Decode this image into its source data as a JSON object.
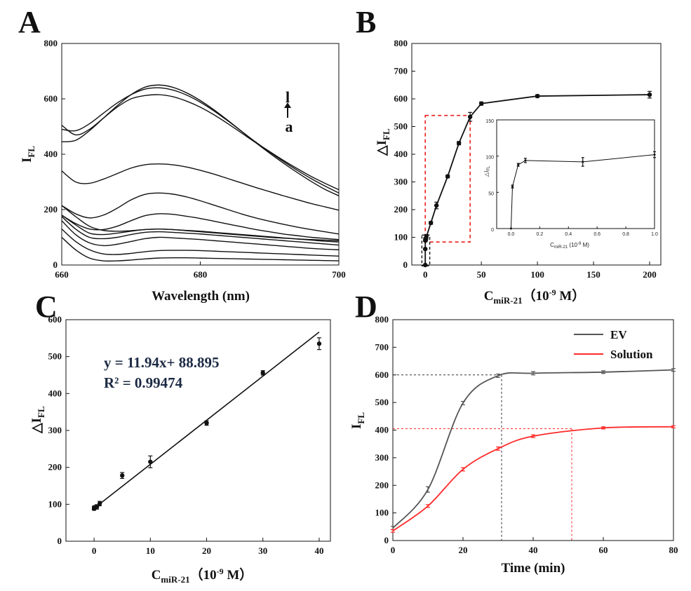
{
  "chart_data": [
    {
      "panel": "A",
      "type": "line",
      "xlabel": "Wavelength (nm)",
      "ylabel": "I",
      "ylabel_sub": "FL",
      "xlim": [
        660,
        700
      ],
      "ylim": [
        0,
        800
      ],
      "xticks": [
        "660",
        "680",
        "700"
      ],
      "yticks": [
        "0",
        "200",
        "400",
        "600",
        "800"
      ],
      "annotation_top": "l",
      "annotation_bottom": "a",
      "x": [
        660,
        662,
        664,
        666,
        668,
        670,
        672,
        674,
        676,
        678,
        680,
        682,
        684,
        686,
        688,
        690,
        692,
        694,
        696,
        698,
        700
      ],
      "series": [
        {
          "values": [
            100,
            55,
            25,
            15,
            15,
            18,
            22,
            25,
            26,
            26,
            25,
            24,
            23,
            22,
            21,
            20,
            19,
            18,
            17,
            16,
            15
          ]
        },
        {
          "values": [
            130,
            85,
            55,
            40,
            38,
            42,
            48,
            52,
            53,
            53,
            52,
            50,
            48,
            46,
            44,
            42,
            40,
            38,
            36,
            34,
            32
          ]
        },
        {
          "values": [
            160,
            110,
            80,
            70,
            75,
            85,
            95,
            100,
            98,
            95,
            92,
            88,
            84,
            80,
            76,
            72,
            68,
            64,
            60,
            57,
            55
          ]
        },
        {
          "values": [
            175,
            130,
            100,
            95,
            100,
            110,
            118,
            120,
            118,
            115,
            112,
            108,
            104,
            100,
            96,
            92,
            88,
            84,
            80,
            76,
            72
          ]
        },
        {
          "values": [
            180,
            145,
            115,
            110,
            115,
            122,
            128,
            130,
            128,
            125,
            122,
            118,
            114,
            110,
            106,
            102,
            98,
            94,
            90,
            86,
            83
          ]
        },
        {
          "values": [
            215,
            175,
            140,
            125,
            122,
            124,
            128,
            130,
            128,
            124,
            120,
            116,
            112,
            108,
            104,
            100,
            97,
            94,
            92,
            90,
            88
          ]
        },
        {
          "values": [
            180,
            150,
            130,
            128,
            140,
            160,
            178,
            185,
            183,
            176,
            168,
            158,
            148,
            138,
            128,
            120,
            112,
            106,
            100,
            96,
            92
          ]
        },
        {
          "values": [
            215,
            185,
            170,
            180,
            205,
            235,
            255,
            260,
            256,
            246,
            232,
            216,
            200,
            184,
            170,
            158,
            147,
            137,
            128,
            120,
            112
          ]
        },
        {
          "values": [
            340,
            300,
            295,
            310,
            330,
            350,
            362,
            365,
            362,
            354,
            342,
            328,
            312,
            296,
            280,
            265,
            250,
            236,
            222,
            210,
            198
          ]
        },
        {
          "values": [
            505,
            470,
            490,
            530,
            570,
            600,
            612,
            615,
            608,
            592,
            570,
            542,
            510,
            476,
            442,
            410,
            378,
            348,
            320,
            295,
            272
          ]
        },
        {
          "values": [
            490,
            485,
            510,
            548,
            585,
            615,
            635,
            640,
            632,
            614,
            588,
            556,
            520,
            482,
            444,
            408,
            374,
            342,
            312,
            285,
            260
          ]
        },
        {
          "values": [
            445,
            450,
            485,
            530,
            575,
            615,
            642,
            650,
            642,
            622,
            594,
            560,
            522,
            482,
            442,
            404,
            368,
            334,
            302,
            273,
            250
          ]
        }
      ]
    },
    {
      "panel": "B",
      "type": "line",
      "xlabel": "C",
      "xlabel_sub": "miR-21",
      "xlabel_unit": "（10",
      "xlabel_exp": "-9",
      "xlabel_tail": " M）",
      "ylabel": "△I",
      "ylabel_sub": "FL",
      "xlim": [
        -12,
        210
      ],
      "ylim": [
        0,
        800
      ],
      "xticks": [
        "0",
        "50",
        "100",
        "150",
        "200"
      ],
      "yticks": [
        "0",
        "100",
        "200",
        "300",
        "400",
        "500",
        "600",
        "700",
        "800"
      ],
      "x": [
        0,
        0.01,
        0.05,
        0.1,
        0.5,
        1,
        5,
        10,
        20,
        30,
        40,
        50,
        100,
        200
      ],
      "y": [
        0,
        58,
        88,
        94,
        92,
        102,
        152,
        215,
        320,
        440,
        535,
        583,
        610,
        615
      ],
      "error": [
        0,
        3,
        3,
        4,
        6,
        8,
        5,
        12,
        5,
        6,
        16,
        6,
        5,
        12
      ],
      "inset": {
        "xlabel": "C",
        "xlabel_sub": "miR-21",
        "xlabel_unit": " (10",
        "xlabel_exp": "-9",
        "xlabel_tail": " M)",
        "ylabel": "△I",
        "ylabel_sub": "FL",
        "xlim": [
          -0.1,
          1.0
        ],
        "ylim": [
          0,
          150
        ],
        "xticks": [
          "0.0",
          "0.2",
          "0.4",
          "0.6",
          "0.8",
          "1.0"
        ],
        "yticks": [
          "0",
          "50",
          "100",
          "150"
        ],
        "x": [
          0,
          0.01,
          0.05,
          0.1,
          0.5,
          1.0
        ],
        "y": [
          0,
          58,
          88,
          94,
          92,
          102
        ],
        "error": [
          0,
          2,
          2,
          3,
          6,
          4
        ]
      }
    },
    {
      "panel": "C",
      "type": "scatter",
      "xlabel": "C",
      "xlabel_sub": "miR-21",
      "xlabel_unit": "（10",
      "xlabel_exp": "-9",
      "xlabel_tail": " M）",
      "ylabel": "△I",
      "ylabel_sub": "FL",
      "xlim": [
        -5,
        42
      ],
      "ylim": [
        0,
        600
      ],
      "xticks": [
        "0",
        "10",
        "20",
        "30",
        "40"
      ],
      "yticks": [
        "0",
        "100",
        "200",
        "300",
        "400",
        "500",
        "600"
      ],
      "x": [
        0,
        0.01,
        0.05,
        0.1,
        0.5,
        1,
        5,
        10,
        20,
        30,
        40
      ],
      "y": [
        88,
        90,
        91,
        92,
        93,
        102,
        178,
        215,
        320,
        456,
        535
      ],
      "error": [
        4,
        4,
        4,
        4,
        6,
        6,
        8,
        16,
        6,
        6,
        16
      ],
      "fit": {
        "slope": 11.94,
        "intercept": 88.895,
        "x_range": [
          0,
          40
        ]
      },
      "equation": "y = 11.94x+ 88.895",
      "r2": "R² = 0.99474"
    },
    {
      "panel": "D",
      "type": "line",
      "xlabel": "Time (min)",
      "ylabel": "I",
      "ylabel_sub": "FL",
      "xlim": [
        0,
        80
      ],
      "ylim": [
        0,
        800
      ],
      "xticks": [
        "0",
        "20",
        "40",
        "60",
        "80"
      ],
      "yticks": [
        "0",
        "100",
        "200",
        "300",
        "400",
        "500",
        "600",
        "700",
        "800"
      ],
      "series": [
        {
          "name": "EV",
          "color": "#555555",
          "x": [
            0,
            10,
            20,
            30,
            40,
            60,
            80
          ],
          "y": [
            45,
            185,
            498,
            597,
            606,
            610,
            618
          ],
          "error": [
            6,
            10,
            6,
            6,
            6,
            5,
            5
          ]
        },
        {
          "name": "Solution",
          "color": "#ff2a2a",
          "x": [
            0,
            10,
            20,
            30,
            40,
            60,
            80
          ],
          "y": [
            35,
            125,
            258,
            333,
            378,
            408,
            412
          ],
          "error": [
            5,
            5,
            6,
            6,
            5,
            4,
            4
          ]
        }
      ],
      "guide_levels": [
        {
          "series": "EV",
          "y": 600,
          "x": 31
        },
        {
          "series": "Solution",
          "y": 405,
          "x": 51
        }
      ]
    }
  ],
  "panels": {
    "a": "A",
    "b": "B",
    "c": "C",
    "d": "D"
  }
}
